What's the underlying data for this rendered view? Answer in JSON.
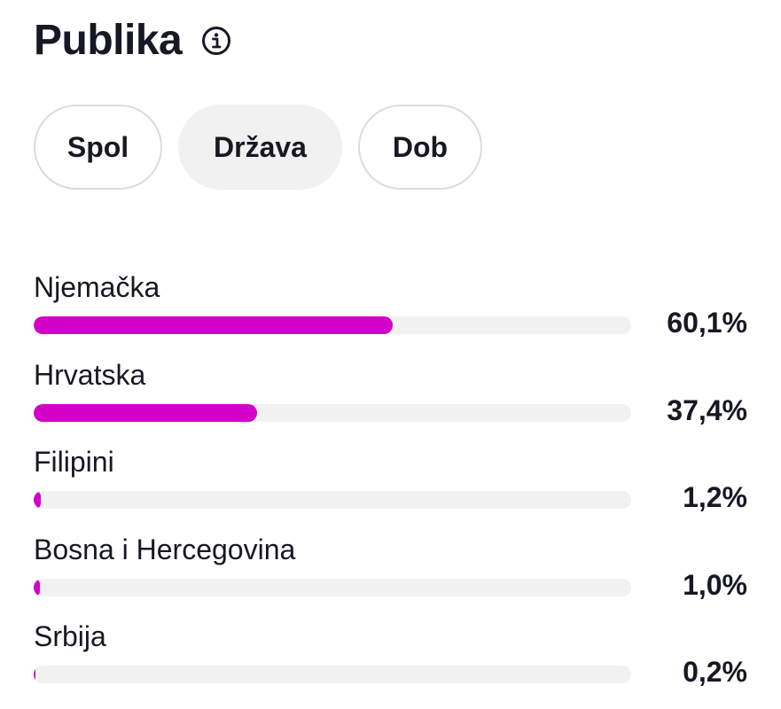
{
  "header": {
    "title": "Publika",
    "info_icon": "info-icon"
  },
  "tabs": [
    {
      "label": "Spol",
      "active": false
    },
    {
      "label": "Država",
      "active": true
    },
    {
      "label": "Dob",
      "active": false
    }
  ],
  "audience": [
    {
      "country": "Njemačka",
      "percent_label": "60,1%",
      "fraction": 0.601
    },
    {
      "country": "Hrvatska",
      "percent_label": "37,4%",
      "fraction": 0.374
    },
    {
      "country": "Filipini",
      "percent_label": "1,2%",
      "fraction": 0.012
    },
    {
      "country": "Bosna i Hercegovina",
      "percent_label": "1,0%",
      "fraction": 0.01
    },
    {
      "country": "Srbija",
      "percent_label": "0,2%",
      "fraction": 0.002
    }
  ],
  "colors": {
    "bar_fill": "#d400c8",
    "bar_track": "#f1f1f2",
    "text": "#161823",
    "active_tab_bg": "#f1f1f2",
    "tab_border": "#dcdcdf"
  }
}
